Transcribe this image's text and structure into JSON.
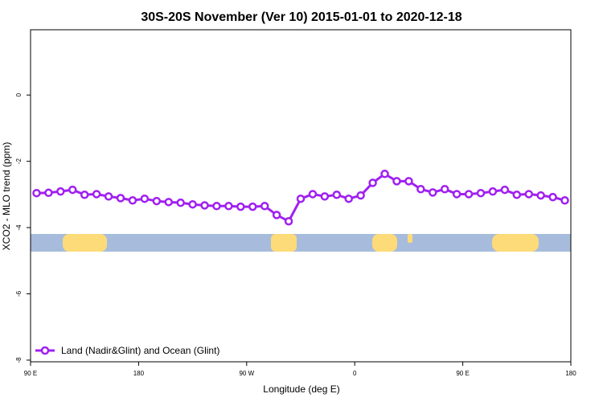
{
  "chart_data": {
    "type": "line",
    "title": "30S-20S November (Ver 10)   2015-01-01 to 2020-12-18",
    "x_label": "Longitude (deg E)",
    "y_label": "XCO2 - MLO trend (ppm)",
    "x": [
      95,
      105,
      115,
      125,
      135,
      145,
      155,
      165,
      175,
      185,
      195,
      205,
      215,
      225,
      235,
      245,
      255,
      265,
      275,
      285,
      295,
      305,
      315,
      325,
      335,
      345,
      355,
      365,
      375,
      385,
      395,
      405,
      415,
      425,
      435,
      445,
      455,
      465,
      475,
      485,
      495,
      505,
      515,
      525,
      535
    ],
    "series": [
      {
        "name": "Land (Nadir&Glint) and Ocean (Glint)",
        "color": "#a020f0",
        "values": [
          -2.96,
          -2.95,
          -2.91,
          -2.86,
          -3.01,
          -2.99,
          -3.06,
          -3.11,
          -3.18,
          -3.13,
          -3.2,
          -3.23,
          -3.25,
          -3.3,
          -3.33,
          -3.35,
          -3.35,
          -3.37,
          -3.37,
          -3.35,
          -3.62,
          -3.81,
          -3.13,
          -2.99,
          -3.06,
          -3.01,
          -3.13,
          -3.03,
          -2.65,
          -2.38,
          -2.6,
          -2.6,
          -2.84,
          -2.94,
          -2.84,
          -2.99,
          -2.99,
          -2.96,
          -2.91,
          -2.86,
          -3.01,
          -2.99,
          -3.03,
          -3.08,
          -3.18
        ]
      }
    ],
    "xlim": [
      90,
      540
    ],
    "xticks": [
      {
        "value": 90,
        "label": "90 E"
      },
      180,
      {
        "value": 270,
        "label": "90 W"
      },
      {
        "value": 360,
        "label": "0"
      },
      {
        "value": 450,
        "label": "90 E"
      },
      {
        "value": 540,
        "label": "180"
      }
    ],
    "ylim": [
      -8.05,
      1.97
    ],
    "yticks": [
      0,
      -2,
      -4,
      -6,
      -8
    ],
    "legend": "lower left"
  }
}
